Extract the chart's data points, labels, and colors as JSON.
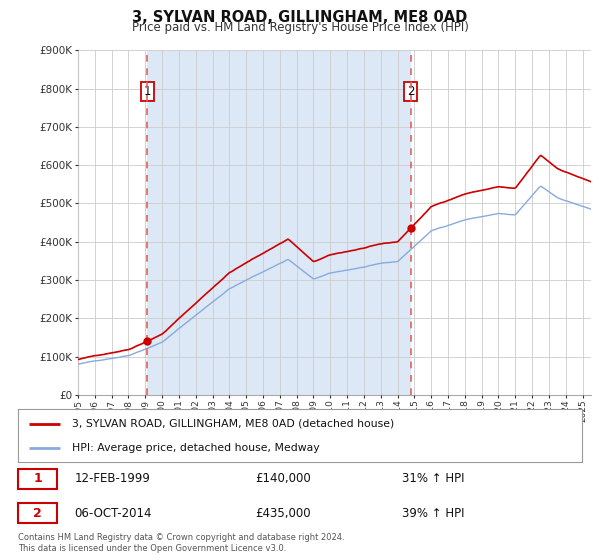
{
  "title": "3, SYLVAN ROAD, GILLINGHAM, ME8 0AD",
  "subtitle": "Price paid vs. HM Land Registry's House Price Index (HPI)",
  "hpi_label": "HPI: Average price, detached house, Medway",
  "property_label": "3, SYLVAN ROAD, GILLINGHAM, ME8 0AD (detached house)",
  "sale1_label": "12-FEB-1999",
  "sale1_price": "£140,000",
  "sale1_hpi": "31% ↑ HPI",
  "sale1_year": 1999.12,
  "sale1_value": 140000,
  "sale2_label": "06-OCT-2014",
  "sale2_price": "£435,000",
  "sale2_hpi": "39% ↑ HPI",
  "sale2_year": 2014.77,
  "sale2_value": 435000,
  "red_color": "#cc0000",
  "blue_color": "#88aadd",
  "dashed_red": "#e06060",
  "shade_color": "#dce8f5",
  "grid_color": "#cccccc",
  "bg_color": "#ffffff",
  "ylim_max": 900000,
  "ylim_min": 0,
  "footnote": "Contains HM Land Registry data © Crown copyright and database right 2024.\nThis data is licensed under the Open Government Licence v3.0."
}
